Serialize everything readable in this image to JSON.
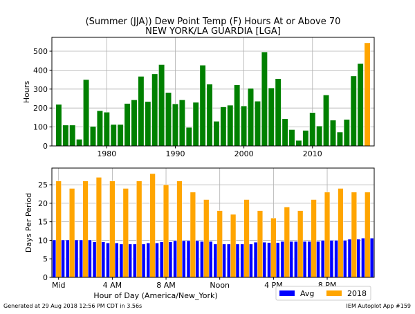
{
  "chart_data": [
    {
      "type": "bar",
      "title": "(Summer (JJA)) Dew Point Temp (F) Hours At or Above 70",
      "subtitle": "NEW YORK/LA GUARDIA [LGA]",
      "xlabel": "",
      "ylabel": "Hours",
      "xlim": [
        1972,
        2019
      ],
      "ylim": [
        0,
        573
      ],
      "grid": true,
      "xticks": [
        1980,
        1990,
        2000,
        2010
      ],
      "yticks": [
        0,
        100,
        200,
        300,
        400,
        500
      ],
      "years": [
        1973,
        1974,
        1975,
        1976,
        1977,
        1978,
        1979,
        1980,
        1981,
        1982,
        1983,
        1984,
        1985,
        1986,
        1987,
        1988,
        1989,
        1990,
        1991,
        1992,
        1993,
        1994,
        1995,
        1996,
        1997,
        1998,
        1999,
        2000,
        2001,
        2002,
        2003,
        2004,
        2005,
        2006,
        2007,
        2008,
        2009,
        2010,
        2011,
        2012,
        2013,
        2014,
        2015,
        2016,
        2017,
        2018
      ],
      "values": [
        219,
        110,
        110,
        35,
        350,
        103,
        186,
        178,
        113,
        113,
        224,
        243,
        367,
        234,
        380,
        429,
        282,
        222,
        243,
        98,
        230,
        426,
        326,
        130,
        206,
        215,
        322,
        211,
        304,
        236,
        496,
        306,
        355,
        143,
        86,
        29,
        82,
        176,
        105,
        269,
        136,
        73,
        140,
        369,
        435,
        544
      ],
      "colors": {
        "default": "#008000",
        "highlight": "#ffa500"
      },
      "highlight_year": 2018
    },
    {
      "type": "bar",
      "xlabel": "Hour of Day (America/New_York)",
      "ylabel": "Days Per Period",
      "xlim": [
        -0.5,
        23.5
      ],
      "ylim": [
        0,
        29.5
      ],
      "grid": true,
      "xticks": [
        0,
        4,
        8,
        12,
        16,
        20
      ],
      "xticklabels": [
        "Mid",
        "4 AM",
        "8 AM",
        "Noon",
        "4 PM",
        "8 PM"
      ],
      "yticks": [
        0,
        5,
        10,
        15,
        20,
        25
      ],
      "categories": [
        0,
        1,
        2,
        3,
        4,
        5,
        6,
        7,
        8,
        9,
        10,
        11,
        12,
        13,
        14,
        15,
        16,
        17,
        18,
        19,
        20,
        21,
        22,
        23
      ],
      "series": [
        {
          "name": "Avg",
          "color": "#0000ff",
          "values": [
            10.1,
            10.1,
            10.1,
            9.6,
            9.3,
            9.0,
            9.0,
            9.3,
            9.6,
            9.9,
            9.9,
            9.7,
            9.0,
            9.0,
            9.0,
            9.5,
            9.4,
            9.7,
            9.7,
            9.7,
            10.0,
            10.0,
            10.3,
            10.6
          ]
        },
        {
          "name": "2018",
          "color": "#ffa500",
          "values": [
            26,
            24,
            26,
            27,
            26,
            24,
            26,
            28,
            25,
            26,
            23,
            21,
            18,
            17,
            21,
            18,
            16,
            19,
            18,
            21,
            23,
            24,
            23,
            23
          ]
        }
      ],
      "legend": "bottom-right"
    }
  ],
  "footer": {
    "generated": "Generated at 29 Aug 2018 12:56 PM CDT in 3.56s",
    "app": "IEM Autoplot App #159"
  }
}
